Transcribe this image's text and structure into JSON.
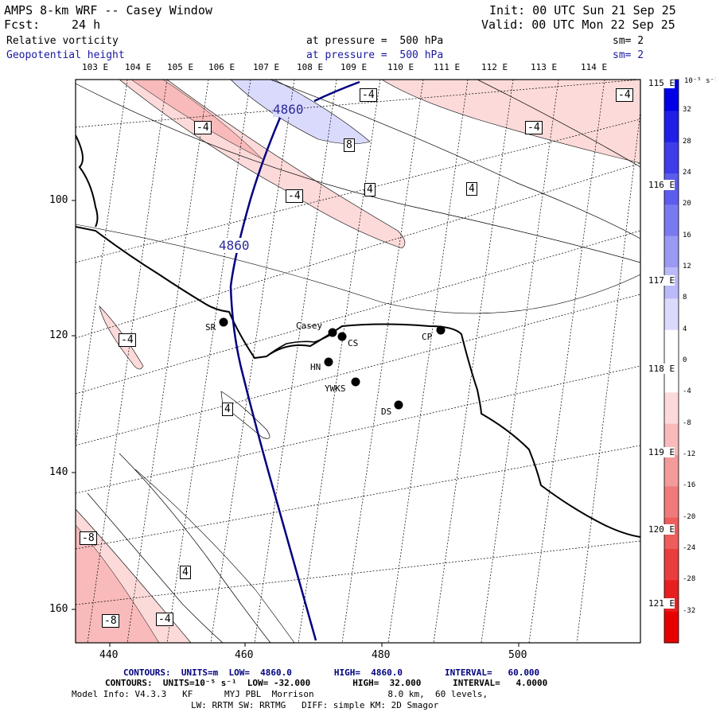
{
  "header": {
    "title": "AMPS 8-km WRF -- Casey Window",
    "init": "Init: 00 UTC Sun 21 Sep 25",
    "fcst_label": "Fcst:",
    "fcst_value": "24 h",
    "valid": "Valid: 00 UTC Mon 22 Sep 25",
    "field1_name": "Relative vorticity",
    "field1_level": "at pressure =  500 hPa",
    "field1_sm": "sm= 2",
    "field2_name": "Geopotential height",
    "field2_level": "at pressure =  500 hPa",
    "field2_sm": "sm= 2"
  },
  "axes": {
    "lon_top": [
      "103 E",
      "104 E",
      "105 E",
      "106 E",
      "107 E",
      "108 E",
      "109 E",
      "110 E",
      "111 E",
      "112 E",
      "113 E",
      "114 E"
    ],
    "lon_right": [
      "115 E",
      "116 E",
      "117 E",
      "118 E",
      "119 E",
      "120 E",
      "121 E"
    ],
    "y_ticks": [
      "100",
      "120",
      "140",
      "160"
    ],
    "x_ticks": [
      "440",
      "460",
      "480",
      "500"
    ]
  },
  "colorbar": {
    "units": "10⁻⁵ s⁻¹",
    "labels": [
      "32",
      "28",
      "24",
      "20",
      "16",
      "12",
      "8",
      "4",
      "0",
      "-4",
      "-8",
      "-12",
      "-16",
      "-20",
      "-24",
      "-28",
      "-32"
    ],
    "colors": [
      "#0000e6",
      "#1f1fe8",
      "#3d3dea",
      "#5c5cee",
      "#7a7af0",
      "#9a9af4",
      "#babaf8",
      "#dadafc",
      "#ffffff",
      "#ffffff",
      "#fcdada",
      "#f8baba",
      "#f49a9a",
      "#f07a7a",
      "#ee5c5c",
      "#ea3d3d",
      "#e81f1f",
      "#e60000"
    ]
  },
  "stations": [
    {
      "name": "SR"
    },
    {
      "name": "Casey"
    },
    {
      "name": "CS"
    },
    {
      "name": "CP"
    },
    {
      "name": "HN"
    },
    {
      "name": "YWKS"
    },
    {
      "name": "DS"
    }
  ],
  "contour_labels": {
    "height": [
      "4860",
      "4860"
    ],
    "vorticity": [
      "-4",
      "-4",
      "-4",
      "-4",
      "-4",
      "8",
      "4",
      "4",
      "-4",
      "4",
      "-8",
      "4",
      "-8",
      "-4"
    ]
  },
  "footer": {
    "line1": "CONTOURS:  UNITS=m  LOW=  4860.0        HIGH=  4860.0        INTERVAL=   60.000",
    "line2": "CONTOURS:  UNITS=10⁻⁵ s⁻¹  LOW= -32.000        HIGH=  32.000      INTERVAL=   4.0000",
    "line3": "Model Info: V4.3.3   KF      MYJ PBL  Morrison              8.0 km,  60 levels,",
    "line4": "LW: RRTM SW: RRTMG   DIFF: simple KM: 2D Smagor"
  }
}
